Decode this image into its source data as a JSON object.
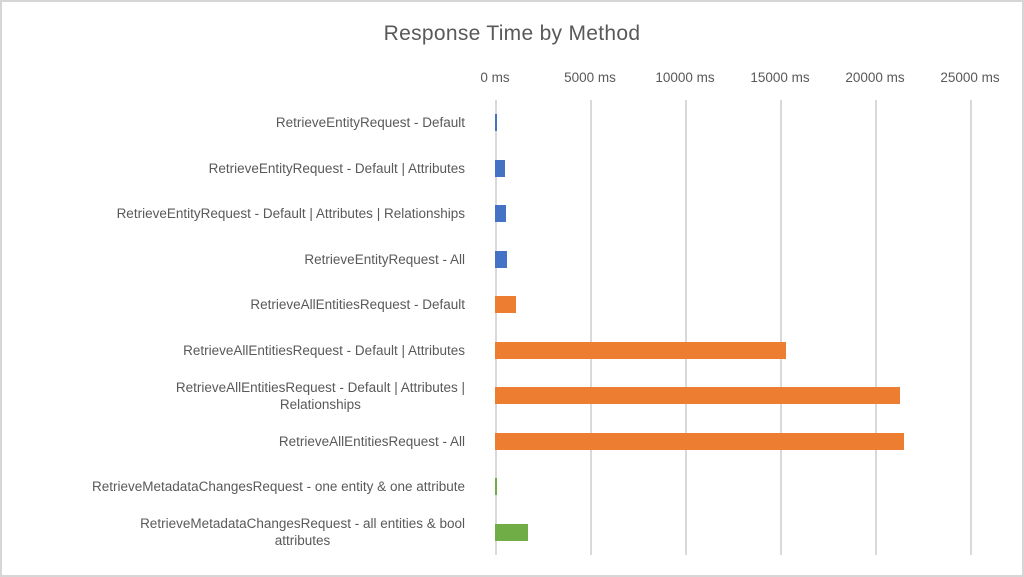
{
  "chart_data": {
    "type": "bar",
    "orientation": "horizontal",
    "title": "Response Time by Method",
    "xlabel": "",
    "ylabel": "",
    "x_unit": "ms",
    "xlim": [
      0,
      25000
    ],
    "x_tick_step": 5000,
    "x_ticks": [
      "0 ms",
      "5000 ms",
      "10000 ms",
      "15000 ms",
      "20000 ms",
      "25000 ms"
    ],
    "grid": true,
    "gridline_color": "#d9d9d9",
    "text_color": "#595959",
    "palette": {
      "RetrieveEntityRequest": "#4472c4",
      "RetrieveAllEntitiesRequest": "#ed7d31",
      "RetrieveMetadataChangesRequest": "#70ad47"
    },
    "bars": [
      {
        "label": "RetrieveEntityRequest - Default",
        "label_lines": [
          "RetrieveEntityRequest - Default"
        ],
        "value": 120,
        "color": "#4472c4"
      },
      {
        "label": "RetrieveEntityRequest - Default | Attributes",
        "label_lines": [
          "RetrieveEntityRequest - Default | Attributes"
        ],
        "value": 540,
        "color": "#4472c4"
      },
      {
        "label": "RetrieveEntityRequest - Default | Attributes | Relationships",
        "label_lines": [
          "RetrieveEntityRequest - Default | Attributes | Relationships"
        ],
        "value": 570,
        "color": "#4472c4"
      },
      {
        "label": "RetrieveEntityRequest - All",
        "label_lines": [
          "RetrieveEntityRequest - All"
        ],
        "value": 620,
        "color": "#4472c4"
      },
      {
        "label": "RetrieveAllEntitiesRequest - Default",
        "label_lines": [
          "RetrieveAllEntitiesRequest - Default"
        ],
        "value": 1100,
        "color": "#ed7d31"
      },
      {
        "label": "RetrieveAllEntitiesRequest - Default | Attributes",
        "label_lines": [
          "RetrieveAllEntitiesRequest - Default | Attributes"
        ],
        "value": 15300,
        "color": "#ed7d31"
      },
      {
        "label": "RetrieveAllEntitiesRequest - Default | Attributes | Relationships",
        "label_lines": [
          "RetrieveAllEntitiesRequest - Default | Attributes |",
          "Relationships"
        ],
        "value": 21300,
        "color": "#ed7d31"
      },
      {
        "label": "RetrieveAllEntitiesRequest - All",
        "label_lines": [
          "RetrieveAllEntitiesRequest - All"
        ],
        "value": 21500,
        "color": "#ed7d31"
      },
      {
        "label": "RetrieveMetadataChangesRequest - one entity & one attribute",
        "label_lines": [
          "RetrieveMetadataChangesRequest - one entity & one attribute"
        ],
        "value": 130,
        "color": "#70ad47"
      },
      {
        "label": "RetrieveMetadataChangesRequest - all entities & bool attributes",
        "label_lines": [
          "RetrieveMetadataChangesRequest - all entities & bool",
          "attributes"
        ],
        "value": 1750,
        "color": "#70ad47"
      }
    ]
  }
}
